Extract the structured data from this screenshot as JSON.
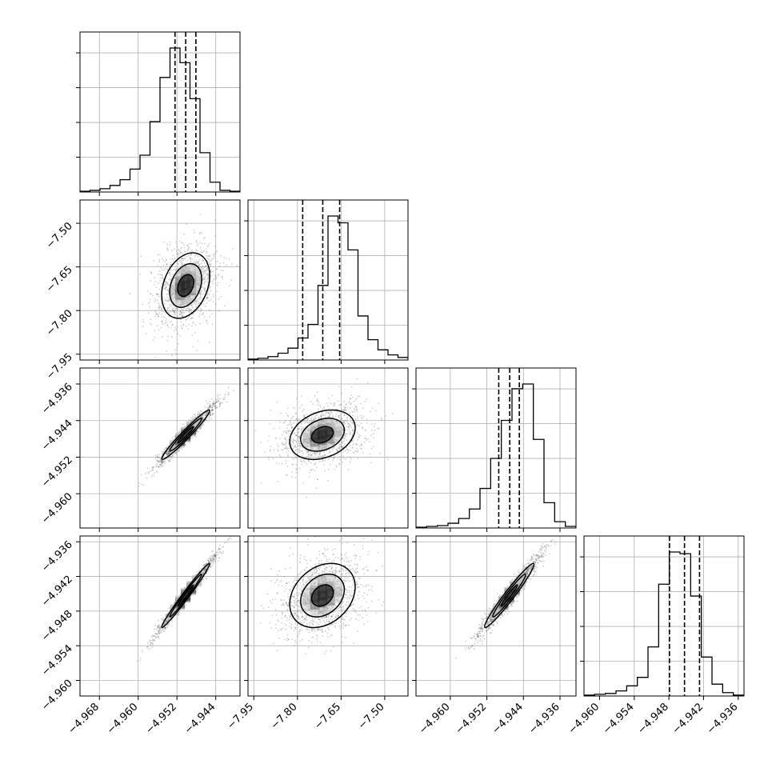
{
  "chart_data": {
    "type": "corner",
    "title": "",
    "dimensions": 4,
    "axis_labels": [
      "",
      "",
      "",
      ""
    ],
    "line_color": "#000000",
    "grid_color": "#b0b0b0",
    "scatter_color": "#555555",
    "grid": true,
    "ranges": [
      [
        -4.972,
        -4.939
      ],
      [
        -7.97,
        -7.42
      ],
      [
        -4.9675,
        -4.9325
      ],
      [
        -4.9627,
        -4.935
      ]
    ],
    "x_ticks": [
      [
        "−4.968",
        "−4.960",
        "−4.952",
        "−4.944"
      ],
      [
        "−7.95",
        "−7.80",
        "−7.65",
        "−7.50"
      ],
      [
        "−4.960",
        "−4.952",
        "−4.944",
        "−4.936"
      ],
      [
        "−4.960",
        "−4.954",
        "−4.948",
        "−4.942",
        "−4.936"
      ]
    ],
    "x_tick_values": [
      [
        -4.968,
        -4.96,
        -4.952,
        -4.944
      ],
      [
        -7.95,
        -7.8,
        -7.65,
        -7.5
      ],
      [
        -4.96,
        -4.952,
        -4.944,
        -4.936
      ],
      [
        -4.96,
        -4.954,
        -4.948,
        -4.942,
        -4.936
      ]
    ],
    "y_ticks": {
      "1": [
        "−7.50",
        "−7.65",
        "−7.80",
        "−7.95"
      ],
      "2": [
        "−4.936",
        "−4.944",
        "−4.952",
        "−4.960"
      ],
      "3": [
        "−4.936",
        "−4.942",
        "−4.948",
        "−4.954",
        "−4.960"
      ]
    },
    "y_tick_values": {
      "1": [
        -7.5,
        -7.65,
        -7.8,
        -7.95
      ],
      "2": [
        -4.936,
        -4.944,
        -4.952,
        -4.96
      ],
      "3": [
        -4.936,
        -4.942,
        -4.948,
        -4.954,
        -4.96
      ]
    },
    "histograms": [
      {
        "quantiles": [
          -4.9524,
          -4.9502,
          -4.9481
        ],
        "counts": [
          1,
          2,
          4,
          8,
          15,
          28,
          45,
          86,
          140,
          176,
          158,
          114,
          48,
          12,
          2,
          1
        ]
      },
      {
        "quantiles": [
          -7.782,
          -7.713,
          -7.655
        ],
        "counts": [
          1,
          2,
          4,
          8,
          14,
          26,
          42,
          88,
          170,
          162,
          130,
          52,
          24,
          12,
          6,
          3
        ]
      },
      {
        "quantiles": [
          -4.9494,
          -4.947,
          -4.9449
        ],
        "counts": [
          1,
          2,
          3,
          6,
          12,
          24,
          50,
          88,
          136,
          176,
          182,
          112,
          32,
          8,
          2
        ]
      },
      {
        "quantiles": [
          -4.9479,
          -4.9453,
          -4.9427
        ],
        "counts": [
          1,
          2,
          3,
          6,
          12,
          22,
          58,
          132,
          170,
          168,
          118,
          46,
          14,
          4,
          1
        ]
      }
    ],
    "pairs": [
      {
        "row": 1,
        "col": 0,
        "mean": [
          -4.9502,
          -7.714
        ],
        "sd": [
          0.0033,
          0.075
        ],
        "rho": 0.3
      },
      {
        "row": 2,
        "col": 0,
        "mean": [
          -4.9502,
          -4.9471
        ],
        "sd": [
          0.0033,
          0.0036
        ],
        "rho": 0.97
      },
      {
        "row": 2,
        "col": 1,
        "mean": [
          -7.714,
          -4.9471
        ],
        "sd": [
          0.075,
          0.0036
        ],
        "rho": 0.28
      },
      {
        "row": 3,
        "col": 0,
        "mean": [
          -4.9502,
          -4.9453
        ],
        "sd": [
          0.0033,
          0.0037
        ],
        "rho": 0.985
      },
      {
        "row": 3,
        "col": 1,
        "mean": [
          -7.714,
          -4.9453
        ],
        "sd": [
          0.075,
          0.0037
        ],
        "rho": 0.27
      },
      {
        "row": 3,
        "col": 2,
        "mean": [
          -4.9471,
          -4.9453
        ],
        "sd": [
          0.0036,
          0.0037
        ],
        "rho": 0.97
      }
    ]
  }
}
